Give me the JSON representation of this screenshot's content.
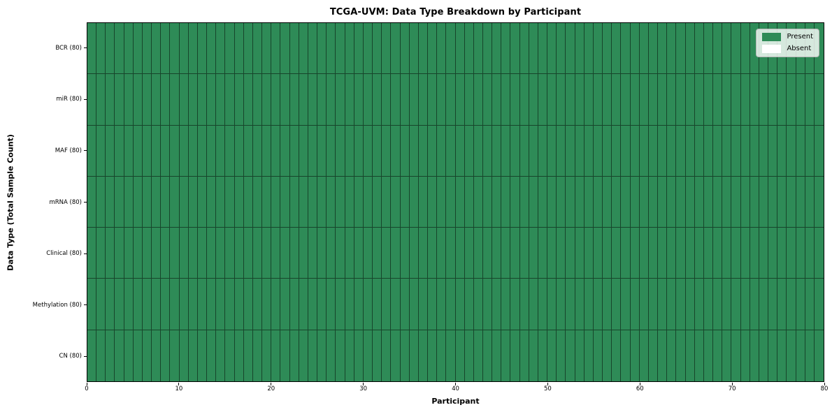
{
  "chart_data": {
    "type": "heatmap",
    "title": "TCGA-UVM: Data Type Breakdown by Participant",
    "xlabel": "Participant",
    "ylabel": "Data Type (Total Sample Count)",
    "x_range": [
      0,
      80
    ],
    "x_ticks": [
      0,
      10,
      20,
      30,
      40,
      50,
      60,
      70,
      80
    ],
    "participants": 80,
    "grid_on": false,
    "legend_position": "upper right",
    "rows": [
      {
        "label": "BCR (80)",
        "present": 80,
        "absent": 0
      },
      {
        "label": "miR (80)",
        "present": 80,
        "absent": 0
      },
      {
        "label": "MAF (80)",
        "present": 80,
        "absent": 0
      },
      {
        "label": "mRNA (80)",
        "present": 80,
        "absent": 0
      },
      {
        "label": "Clinical (80)",
        "present": 80,
        "absent": 0
      },
      {
        "label": "Methylation (80)",
        "present": 80,
        "absent": 0
      },
      {
        "label": "CN (80)",
        "present": 80,
        "absent": 0
      }
    ],
    "legend": [
      {
        "label": "Present",
        "color": "#2e8b57"
      },
      {
        "label": "Absent",
        "color": "#ffffff"
      }
    ],
    "colors": {
      "present": "#2e8b57",
      "absent": "#ffffff",
      "cell_border": "rgba(0,0,0,0.5)",
      "frame": "#000000"
    }
  }
}
